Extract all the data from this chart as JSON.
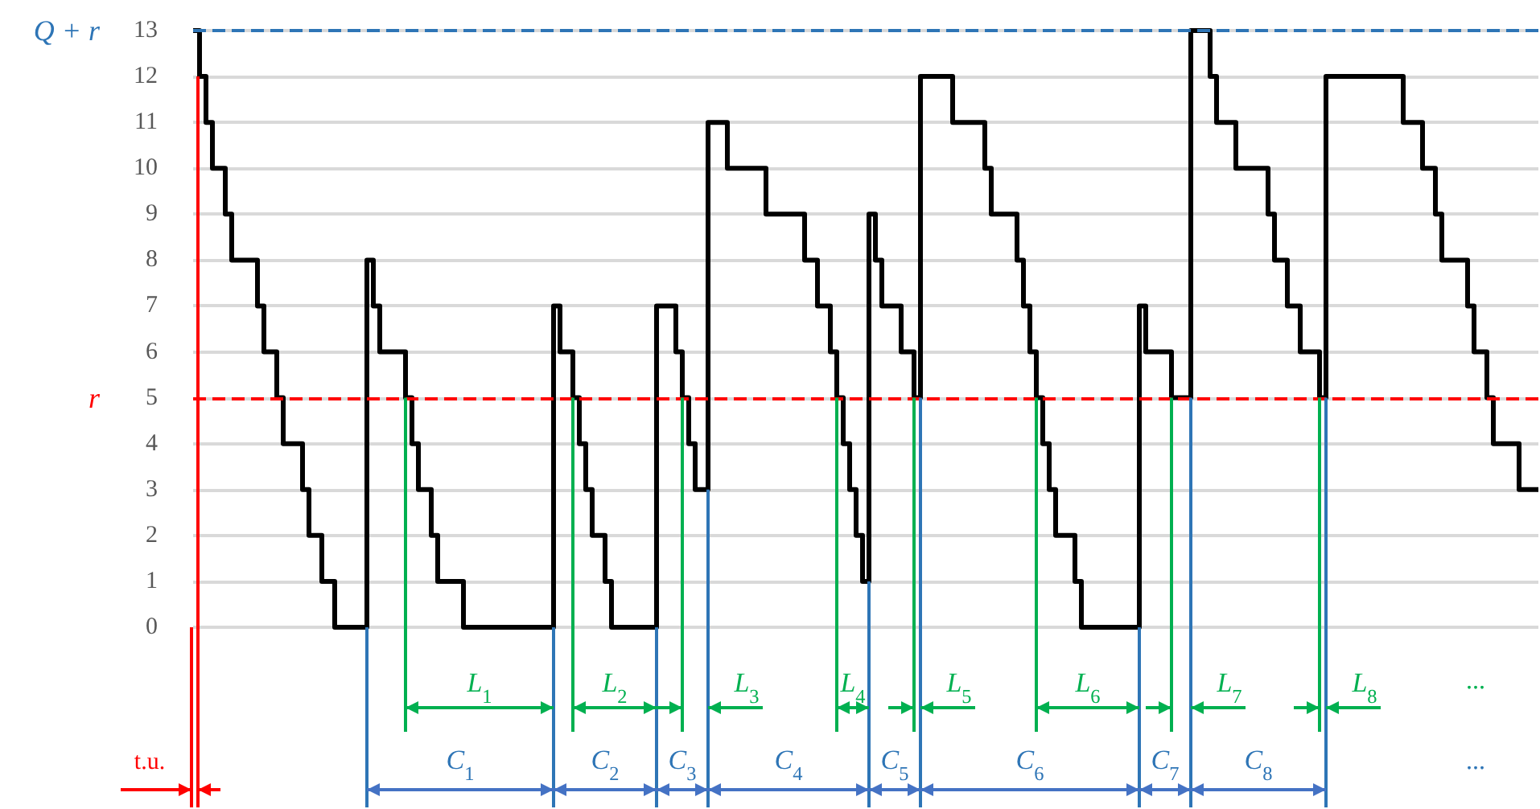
{
  "chart_data": {
    "type": "step",
    "categories": [
      null,
      null,
      null,
      null,
      null,
      null,
      null,
      null,
      null,
      null,
      null,
      null,
      null,
      null,
      null,
      null,
      null,
      null,
      null,
      null,
      null,
      null,
      null,
      null,
      null,
      null,
      null,
      null,
      null,
      null,
      null,
      null,
      null,
      null,
      null,
      null,
      null,
      null,
      null,
      null,
      null,
      null,
      null,
      null,
      null,
      null,
      null,
      null,
      null,
      null,
      null,
      null,
      null,
      null,
      null,
      null,
      null,
      null,
      null,
      null,
      null,
      null,
      null,
      null,
      null,
      null,
      null,
      null,
      null,
      null,
      null,
      null,
      null,
      null,
      null,
      null,
      null,
      null,
      null,
      null,
      null,
      null,
      null,
      null,
      null,
      null,
      null,
      null,
      null,
      null,
      null,
      null,
      null,
      null,
      null,
      null,
      null,
      null,
      null,
      null,
      null,
      null,
      null,
      null,
      null,
      null,
      null,
      null,
      null,
      null,
      null,
      null,
      null,
      null,
      null,
      null,
      null,
      null,
      null,
      null,
      null,
      null,
      null,
      null,
      null,
      null,
      null,
      null,
      null,
      null,
      null,
      null,
      null,
      null,
      null,
      null,
      null,
      null,
      null,
      null,
      null,
      null,
      null,
      null,
      null,
      null,
      null,
      null,
      null,
      null,
      null,
      null,
      null,
      null,
      null,
      null,
      null,
      null,
      null,
      null,
      null,
      null,
      null,
      null,
      null,
      null,
      null,
      null,
      null,
      null,
      null,
      null,
      null,
      null,
      null,
      null,
      null,
      null,
      null,
      null,
      null,
      null,
      null,
      null,
      null,
      null,
      null,
      null,
      null,
      null,
      null,
      null,
      null,
      null,
      null,
      null,
      null,
      null,
      null,
      null,
      null,
      null,
      null,
      null,
      null,
      null,
      null,
      null,
      null,
      null
    ],
    "series": [
      {
        "color": "#000000",
        "values": [
          13,
          12,
          11,
          10,
          10,
          9,
          8,
          8,
          8,
          8,
          7,
          6,
          6,
          5,
          4,
          4,
          4,
          3,
          2,
          2,
          1,
          1,
          0,
          0,
          0,
          0,
          0,
          8,
          7,
          6,
          6,
          6,
          6,
          5,
          4,
          3,
          3,
          2,
          1,
          1,
          1,
          1,
          0,
          0,
          0,
          0,
          0,
          0,
          0,
          0,
          0,
          0,
          0,
          0,
          0,
          0,
          7,
          6,
          6,
          5,
          4,
          3,
          2,
          2,
          1,
          0,
          0,
          0,
          0,
          0,
          0,
          0,
          7,
          7,
          7,
          6,
          5,
          4,
          3,
          3,
          11,
          11,
          11,
          10,
          10,
          10,
          10,
          10,
          10,
          9,
          9,
          9,
          9,
          9,
          9,
          8,
          8,
          7,
          7,
          6,
          5,
          4,
          3,
          2,
          1,
          9,
          8,
          7,
          7,
          7,
          6,
          6,
          5,
          12,
          12,
          12,
          12,
          12,
          11,
          11,
          11,
          11,
          11,
          10,
          9,
          9,
          9,
          9,
          8,
          7,
          6,
          5,
          4,
          3,
          2,
          2,
          2,
          1,
          0,
          0,
          0,
          0,
          0,
          0,
          0,
          0,
          0,
          7,
          6,
          6,
          6,
          6,
          5,
          5,
          5,
          13,
          13,
          13,
          12,
          11,
          11,
          11,
          10,
          10,
          10,
          10,
          10,
          9,
          8,
          8,
          7,
          7,
          6,
          6,
          6,
          5,
          12,
          12,
          12,
          12,
          12,
          12,
          12,
          12,
          12,
          12,
          12,
          12,
          11,
          11,
          11,
          10,
          10,
          9,
          8,
          8,
          8,
          8,
          7,
          6,
          6,
          5,
          4,
          4,
          4,
          4,
          3,
          3,
          3,
          3
        ]
      }
    ],
    "ylim": [
      0,
      13
    ],
    "yticks": [
      0,
      1,
      2,
      3,
      4,
      5,
      6,
      7,
      8,
      9,
      10,
      11,
      12,
      13
    ],
    "grid": "y",
    "tick_labels": "y",
    "line_style": "solid",
    "ref_lines": [
      {
        "axis": "y",
        "value": 13,
        "label": "Q + r",
        "color": "#2e75b6",
        "line_style": "dashed"
      },
      {
        "axis": "y",
        "value": 5,
        "label": "r",
        "color": "#ff0000",
        "line_style": "dashed"
      }
    ],
    "annotations": [
      "L$_{1}$",
      "L$_{2}$",
      "L$_{3}$",
      "L$_{4}$",
      "L$_{5}$",
      "L$_{6}$",
      "L$_{7}$",
      "L$_{8}$",
      "C$_{1}$",
      "C$_{2}$",
      "C$_{3}$",
      "C$_{4}$",
      "C$_{5}$",
      "C$_{6}$",
      "C$_{7}$",
      "C$_{8}$",
      "...",
      "...",
      "t.u."
    ]
  }
}
